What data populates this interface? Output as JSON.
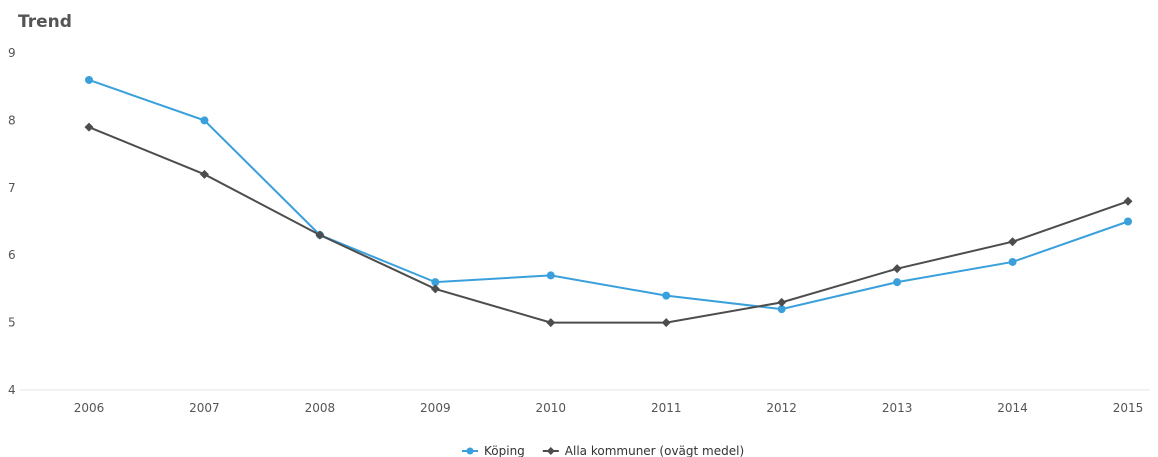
{
  "chart_data": {
    "type": "line",
    "title": "Trend",
    "xlabel": "",
    "ylabel": "",
    "categories": [
      "2006",
      "2007",
      "2008",
      "2009",
      "2010",
      "2011",
      "2012",
      "2013",
      "2014",
      "2015"
    ],
    "ylim": [
      4,
      9
    ],
    "yticks": [
      "4",
      "5",
      "6",
      "7",
      "8",
      "9"
    ],
    "grid": false,
    "legend_position": "bottom-center",
    "series": [
      {
        "name": "Köping",
        "color": "#3aa0dc",
        "marker": "circle",
        "values": [
          8.6,
          8.0,
          6.3,
          5.6,
          5.7,
          5.4,
          5.2,
          5.6,
          5.9,
          6.5
        ]
      },
      {
        "name": "Alla kommuner (ovägt medel)",
        "color": "#4d4d4d",
        "marker": "diamond",
        "values": [
          7.9,
          7.2,
          6.3,
          5.5,
          5.0,
          5.0,
          5.3,
          5.8,
          6.2,
          6.8
        ]
      }
    ]
  }
}
